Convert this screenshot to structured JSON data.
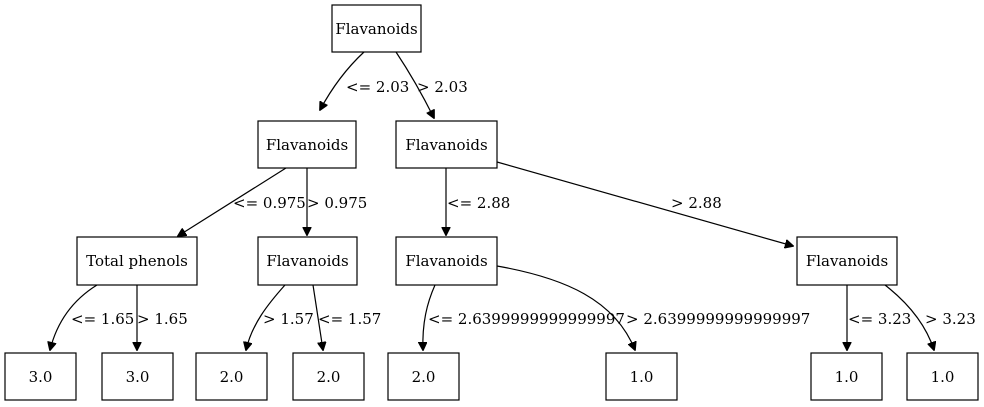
{
  "diagram": {
    "type": "decision-tree",
    "nodes": {
      "root": "Flavanoids",
      "left": "Flavanoids",
      "right": "Flavanoids",
      "left_left": "Total phenols",
      "left_right": "Flavanoids",
      "right_left": "Flavanoids",
      "right_right": "Flavanoids",
      "leaf_1": "3.0",
      "leaf_2": "3.0",
      "leaf_3": "2.0",
      "leaf_4": "2.0",
      "leaf_5": "2.0",
      "leaf_6": "1.0",
      "leaf_7": "1.0",
      "leaf_8": "1.0"
    },
    "edges": {
      "root_left": "<= 2.03",
      "root_right": "> 2.03",
      "left_left": "<= 0.975",
      "left_right": "> 0.975",
      "right_left": "<= 2.88",
      "right_right": "> 2.88",
      "ll_left": "<= 1.65",
      "ll_right": "> 1.65",
      "lr_left": "> 1.57",
      "lr_right": "<= 1.57",
      "rl_left": "<= 2.6399999999999997",
      "rl_right": "> 2.6399999999999997",
      "rr_left": "<= 3.23",
      "rr_right": "> 3.23"
    }
  }
}
